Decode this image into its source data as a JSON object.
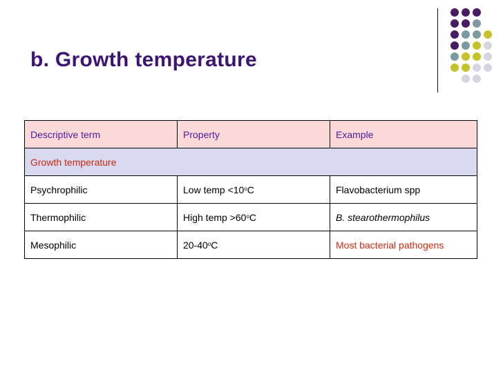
{
  "slide": {
    "title": "b. Growth temperature"
  },
  "decor": {
    "dot_colors": {
      "purple": "#4a1c63",
      "teal": "#7b9aa0",
      "lime": "#c4c42a",
      "gray": "#d6d6e2"
    }
  },
  "table": {
    "headers": [
      "Descriptive term",
      "Property",
      "Example"
    ],
    "group_label": "Growth temperature",
    "rows": [
      {
        "term": "Psychrophilic",
        "prop_pre": "Low temp <10",
        "prop_sup": "o",
        "prop_post": "C",
        "example": "Flavobacterium spp"
      },
      {
        "term": "Thermophilic",
        "prop_pre": "High temp >60",
        "prop_sup": "o",
        "prop_post": "C",
        "example": "B. stearothermophilus"
      },
      {
        "term": "Mesophilic",
        "prop_pre": "20-40",
        "prop_sup": "o",
        "prop_post": "C",
        "example": "Most bacterial pathogens"
      }
    ]
  }
}
